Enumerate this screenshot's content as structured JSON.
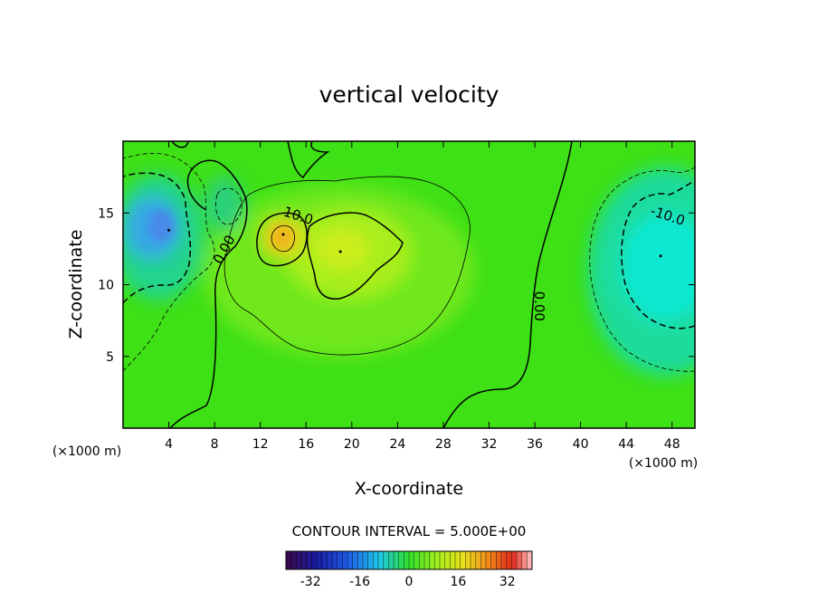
{
  "chart_data": {
    "type": "heatmap",
    "title": "vertical velocity",
    "xlabel": "X-coordinate",
    "ylabel": "Z-coordinate",
    "x_unit_left": "(×1000 m)",
    "x_unit_right": "(×1000 m)",
    "xlim": [
      0,
      50
    ],
    "ylim": [
      0,
      20
    ],
    "x_ticks": [
      4,
      8,
      12,
      16,
      20,
      24,
      28,
      32,
      36,
      40,
      44,
      48
    ],
    "y_ticks": [
      5,
      10,
      15
    ],
    "contour_interval_text": "CONTOUR INTERVAL =  5.000E+00",
    "contour_labels": [
      {
        "text": "10.0",
        "x": 15.2,
        "y": 14.5
      },
      {
        "text": "0.00",
        "x": 9.2,
        "y": 12.3
      },
      {
        "text": "0.00",
        "x": 36.0,
        "y": 8.5
      },
      {
        "text": "-10.0",
        "x": 47.5,
        "y": 14.5
      }
    ],
    "features": [
      {
        "kind": "max",
        "x": 14,
        "y": 13.5,
        "value": 14
      },
      {
        "kind": "max",
        "x": 19,
        "y": 12.3,
        "value": 11
      },
      {
        "kind": "min",
        "x": 4,
        "y": 13.8,
        "value": -15
      },
      {
        "kind": "min",
        "x": 47,
        "y": 12,
        "value": -11
      }
    ],
    "colorbar": {
      "range": [
        -40,
        40
      ],
      "tick_values": [
        -32,
        -16,
        0,
        16,
        32
      ],
      "tick_labels": [
        "-32",
        "-16",
        "0",
        "16",
        "32"
      ]
    },
    "grid": false
  }
}
